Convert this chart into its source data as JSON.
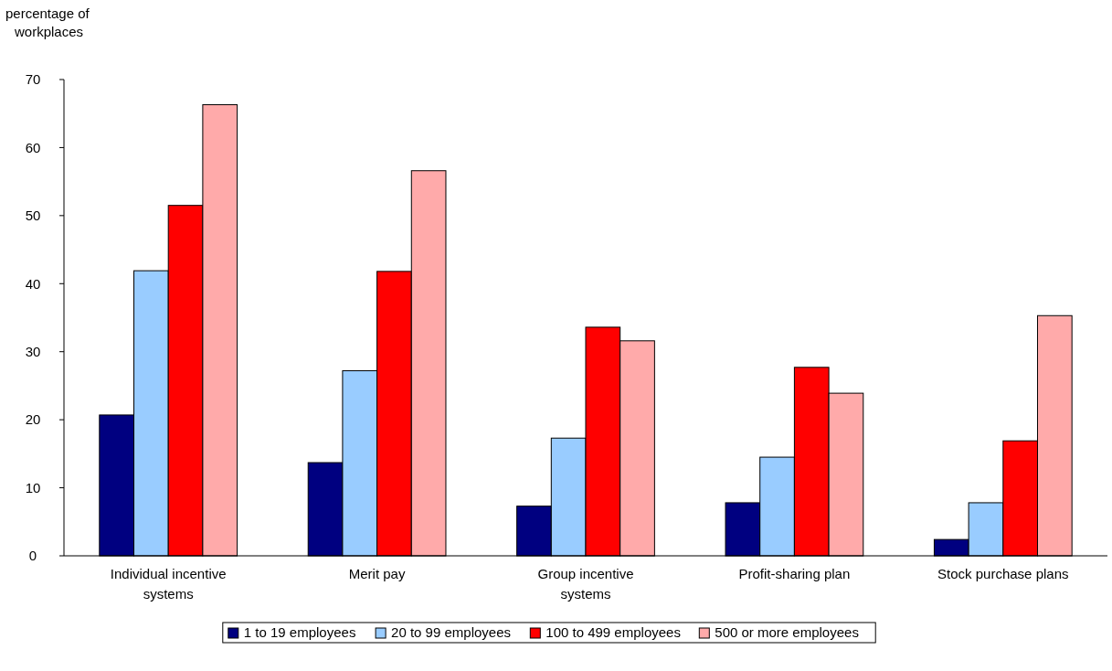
{
  "chart_data": {
    "type": "bar",
    "ylabel": "percentage of\nworkplaces",
    "categories": [
      "Individual incentive systems",
      "Merit pay",
      "Group incentive systems",
      "Profit-sharing plan",
      "Stock purchase plans"
    ],
    "series": [
      {
        "name": "1 to 19 employees",
        "color": "#000080",
        "values": [
          20.7,
          13.7,
          7.3,
          7.8,
          2.4
        ]
      },
      {
        "name": "20 to 99 employees",
        "color": "#99ccff",
        "values": [
          41.9,
          27.2,
          17.3,
          14.5,
          7.8
        ]
      },
      {
        "name": "100 to 499 employees",
        "color": "#ff0000",
        "values": [
          51.5,
          41.8,
          33.6,
          27.7,
          16.9
        ]
      },
      {
        "name": "500 or more employees",
        "color": "#ffaaaa",
        "values": [
          66.3,
          56.6,
          31.6,
          23.9,
          35.3
        ]
      }
    ],
    "ylim": [
      0,
      70
    ],
    "yticks": [
      0,
      10,
      20,
      30,
      40,
      50,
      60,
      70
    ],
    "grid": false,
    "legend": "bottom"
  }
}
